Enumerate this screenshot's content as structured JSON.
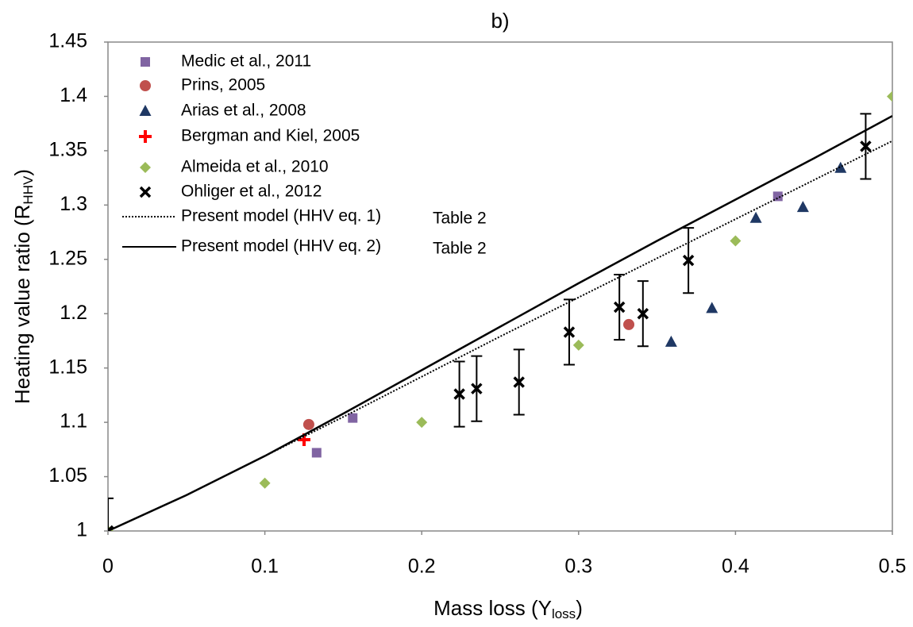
{
  "chart_data": {
    "type": "scatter",
    "title": "b)",
    "x_label": [
      "Mass loss (Y",
      "loss",
      ")"
    ],
    "y_label": [
      "Heating value ratio (R",
      "HHV",
      ")"
    ],
    "xlim": [
      0,
      0.5
    ],
    "ylim": [
      1,
      1.45
    ],
    "xticks": [
      0,
      0.1,
      0.2,
      0.3,
      0.4,
      0.5
    ],
    "yticks": [
      1,
      1.05,
      1.1,
      1.15,
      1.2,
      1.25,
      1.3,
      1.35,
      1.4,
      1.45
    ],
    "series": [
      {
        "name": "Medic et al., 2011",
        "color": "#8064a2",
        "marker": "square",
        "x": [
          0.133,
          0.156,
          0.427
        ],
        "values": [
          1.072,
          1.104,
          1.308
        ]
      },
      {
        "name": "Prins, 2005",
        "color": "#c0504d",
        "marker": "circle",
        "x": [
          0.128,
          0.332
        ],
        "values": [
          1.098,
          1.19
        ]
      },
      {
        "name": "Arias et al., 2008",
        "color": "#1f3864",
        "marker": "triangle",
        "x": [
          0.359,
          0.385,
          0.413,
          0.443,
          0.467
        ],
        "values": [
          1.174,
          1.205,
          1.288,
          1.298,
          1.334
        ]
      },
      {
        "name": "Bergman and Kiel, 2005",
        "color": "#ff0000",
        "marker": "plus",
        "x": [
          0.125
        ],
        "values": [
          1.084
        ]
      },
      {
        "name": "Almeida et al., 2010",
        "color": "#9bbb59",
        "marker": "diamond",
        "x": [
          0,
          0.1,
          0.2,
          0.3,
          0.4,
          0.5
        ],
        "values": [
          1,
          1.044,
          1.1,
          1.171,
          1.267,
          1.4
        ]
      },
      {
        "name": "Ohliger et al., 2012",
        "color": "#000000",
        "marker": "cross",
        "x": [
          0,
          0.224,
          0.235,
          0.262,
          0.294,
          0.326,
          0.341,
          0.37,
          0.483
        ],
        "values": [
          1,
          1.126,
          1.131,
          1.137,
          1.183,
          1.206,
          1.2,
          1.249,
          1.354
        ],
        "errors": [
          0.03,
          0.03,
          0.03,
          0.03,
          0.03,
          0.03,
          0.03,
          0.03,
          0.03
        ]
      },
      {
        "name": "Present model (HHV eq. 1)",
        "note": "Table 2",
        "color": "#000000",
        "marker": "line",
        "dash": "dotted",
        "x": [
          0,
          0.05,
          0.1,
          0.15,
          0.2,
          0.25,
          0.3,
          0.35,
          0.4,
          0.45,
          0.5
        ],
        "values": [
          1,
          1.033,
          1.069,
          1.105,
          1.142,
          1.179,
          1.215,
          1.251,
          1.287,
          1.323,
          1.359
        ]
      },
      {
        "name": "Present model (HHV eq. 2)",
        "note": "Table 2",
        "color": "#000000",
        "marker": "line",
        "dash": "solid",
        "x": [
          0,
          0.05,
          0.1,
          0.15,
          0.2,
          0.25,
          0.3,
          0.35,
          0.4,
          0.45,
          0.5
        ],
        "values": [
          1,
          1.033,
          1.069,
          1.108,
          1.148,
          1.188,
          1.228,
          1.267,
          1.305,
          1.343,
          1.382
        ]
      }
    ]
  }
}
